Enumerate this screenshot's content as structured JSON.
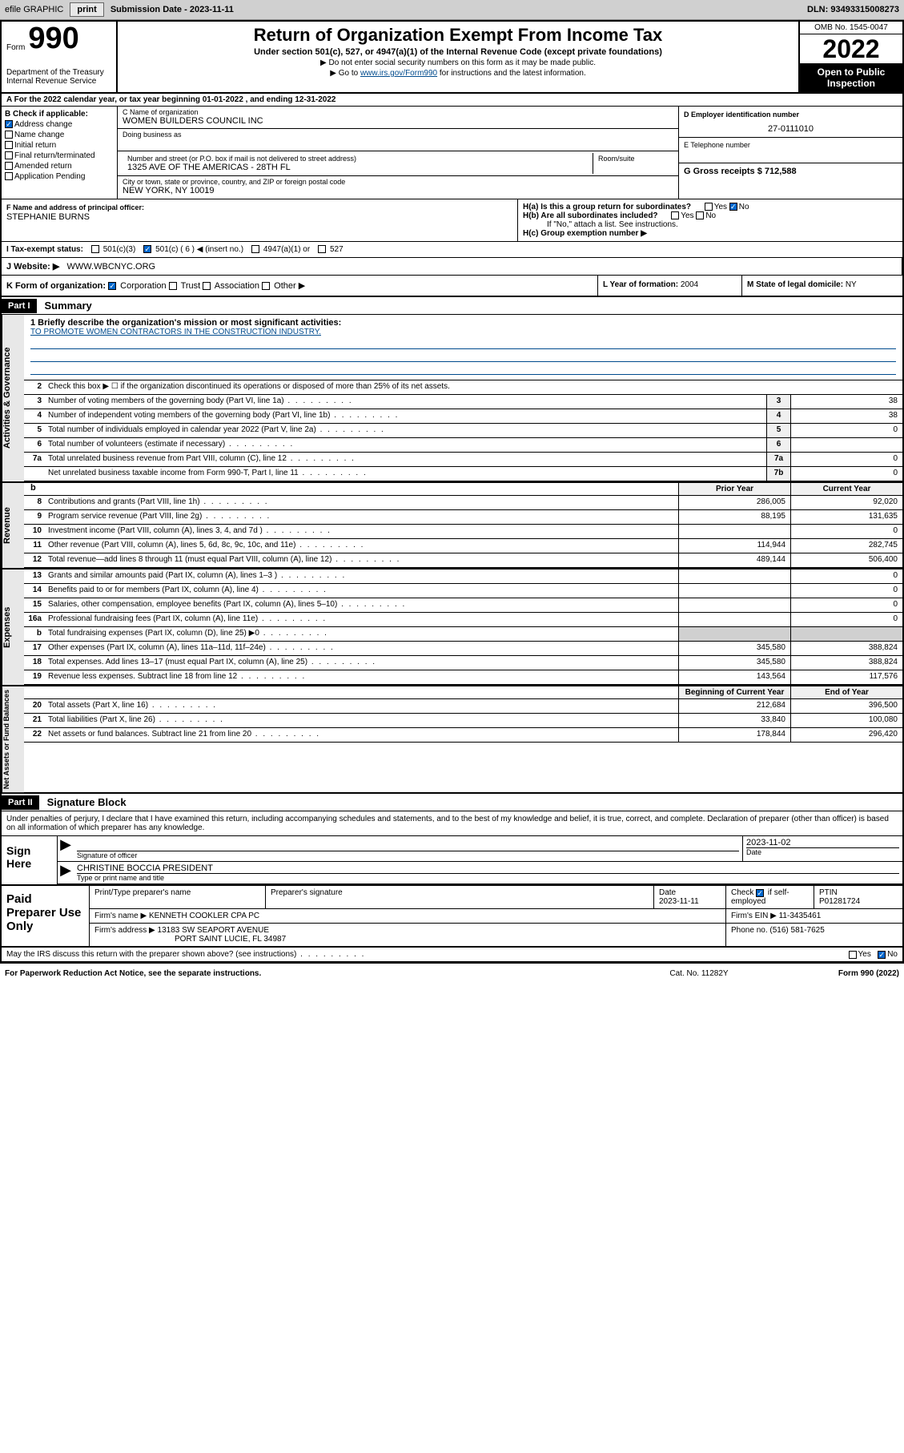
{
  "toolbar": {
    "efile": "efile GRAPHIC",
    "print": "print",
    "submission_label": "Submission Date - ",
    "submission_date": "2023-11-11",
    "dln": "DLN: 93493315008273"
  },
  "header": {
    "form_word": "Form",
    "form_number": "990",
    "dept": "Department of the Treasury",
    "irs": "Internal Revenue Service",
    "title": "Return of Organization Exempt From Income Tax",
    "subtitle": "Under section 501(c), 527, or 4947(a)(1) of the Internal Revenue Code (except private foundations)",
    "note1": "▶ Do not enter social security numbers on this form as it may be made public.",
    "note2_prefix": "▶ Go to ",
    "note2_link": "www.irs.gov/Form990",
    "note2_suffix": " for instructions and the latest information.",
    "omb": "OMB No. 1545-0047",
    "year": "2022",
    "inspection": "Open to Public Inspection"
  },
  "tax_year": "A For the 2022 calendar year, or tax year beginning 01-01-2022   , and ending 12-31-2022",
  "section_b": {
    "label": "B Check if applicable:",
    "items": [
      "Address change",
      "Name change",
      "Initial return",
      "Final return/terminated",
      "Amended return",
      "Application Pending"
    ],
    "checked": [
      true,
      false,
      false,
      false,
      false,
      false
    ]
  },
  "section_c": {
    "name_label": "C Name of organization",
    "name": "WOMEN BUILDERS COUNCIL INC",
    "dba_label": "Doing business as",
    "dba": "",
    "street_label": "Number and street (or P.O. box if mail is not delivered to street address)",
    "street": "1325 AVE OF THE AMERICAS - 28TH FL",
    "room_label": "Room/suite",
    "city_label": "City or town, state or province, country, and ZIP or foreign postal code",
    "city": "NEW YORK, NY  10019"
  },
  "section_d": {
    "label": "D Employer identification number",
    "value": "27-0111010"
  },
  "section_e": {
    "label": "E Telephone number",
    "value": ""
  },
  "section_g": {
    "label": "G Gross receipts $ ",
    "value": "712,588"
  },
  "section_f": {
    "label": "F  Name and address of principal officer:",
    "value": "STEPHANIE BURNS"
  },
  "section_h": {
    "ha": "H(a)  Is this a group return for subordinates?",
    "hb": "H(b)  Are all subordinates included?",
    "hb_note": "If \"No,\" attach a list. See instructions.",
    "hc": "H(c)  Group exemption number ▶",
    "yes": "Yes",
    "no": "No"
  },
  "section_i": {
    "label": "I   Tax-exempt status:",
    "opts": [
      "501(c)(3)",
      "501(c) ( 6 ) ◀ (insert no.)",
      "4947(a)(1) or",
      "527"
    ],
    "checked_idx": 1
  },
  "section_j": {
    "label": "J   Website: ▶",
    "value": "WWW.WBCNYC.ORG"
  },
  "section_k": {
    "label": "K Form of organization:",
    "opts": [
      "Corporation",
      "Trust",
      "Association",
      "Other ▶"
    ],
    "checked_idx": 0
  },
  "section_l": {
    "label": "L Year of formation: ",
    "value": "2004"
  },
  "section_m": {
    "label": "M State of legal domicile: ",
    "value": "NY"
  },
  "parts": {
    "p1": "Part I",
    "p1_title": "Summary",
    "p2": "Part II",
    "p2_title": "Signature Block"
  },
  "mission": {
    "prompt": "1   Briefly describe the organization's mission or most significant activities:",
    "text": "TO PROMOTE WOMEN CONTRACTORS IN THE CONSTRUCTION INDUSTRY."
  },
  "governance": {
    "side": "Activities & Governance",
    "line2": "Check this box ▶ ☐  if the organization discontinued its operations or disposed of more than 25% of its net assets.",
    "lines": [
      {
        "n": "3",
        "d": "Number of voting members of the governing body (Part VI, line 1a)",
        "box": "3",
        "v": "38"
      },
      {
        "n": "4",
        "d": "Number of independent voting members of the governing body (Part VI, line 1b)",
        "box": "4",
        "v": "38"
      },
      {
        "n": "5",
        "d": "Total number of individuals employed in calendar year 2022 (Part V, line 2a)",
        "box": "5",
        "v": "0"
      },
      {
        "n": "6",
        "d": "Total number of volunteers (estimate if necessary)",
        "box": "6",
        "v": ""
      },
      {
        "n": "7a",
        "d": "Total unrelated business revenue from Part VIII, column (C), line 12",
        "box": "7a",
        "v": "0"
      },
      {
        "n": "",
        "d": "Net unrelated business taxable income from Form 990-T, Part I, line 11",
        "box": "7b",
        "v": "0"
      }
    ]
  },
  "col_headers": {
    "b": "b",
    "prior": "Prior Year",
    "current": "Current Year",
    "begin": "Beginning of Current Year",
    "end": "End of Year"
  },
  "revenue": {
    "side": "Revenue",
    "lines": [
      {
        "n": "8",
        "d": "Contributions and grants (Part VIII, line 1h)",
        "p": "286,005",
        "c": "92,020"
      },
      {
        "n": "9",
        "d": "Program service revenue (Part VIII, line 2g)",
        "p": "88,195",
        "c": "131,635"
      },
      {
        "n": "10",
        "d": "Investment income (Part VIII, column (A), lines 3, 4, and 7d )",
        "p": "",
        "c": "0"
      },
      {
        "n": "11",
        "d": "Other revenue (Part VIII, column (A), lines 5, 6d, 8c, 9c, 10c, and 11e)",
        "p": "114,944",
        "c": "282,745"
      },
      {
        "n": "12",
        "d": "Total revenue—add lines 8 through 11 (must equal Part VIII, column (A), line 12)",
        "p": "489,144",
        "c": "506,400"
      }
    ]
  },
  "expenses": {
    "side": "Expenses",
    "lines": [
      {
        "n": "13",
        "d": "Grants and similar amounts paid (Part IX, column (A), lines 1–3 )",
        "p": "",
        "c": "0"
      },
      {
        "n": "14",
        "d": "Benefits paid to or for members (Part IX, column (A), line 4)",
        "p": "",
        "c": "0"
      },
      {
        "n": "15",
        "d": "Salaries, other compensation, employee benefits (Part IX, column (A), lines 5–10)",
        "p": "",
        "c": "0"
      },
      {
        "n": "16a",
        "d": "Professional fundraising fees (Part IX, column (A), line 11e)",
        "p": "",
        "c": "0"
      },
      {
        "n": "b",
        "d": "Total fundraising expenses (Part IX, column (D), line 25) ▶0",
        "p": "shade",
        "c": "shade"
      },
      {
        "n": "17",
        "d": "Other expenses (Part IX, column (A), lines 11a–11d, 11f–24e)",
        "p": "345,580",
        "c": "388,824"
      },
      {
        "n": "18",
        "d": "Total expenses. Add lines 13–17 (must equal Part IX, column (A), line 25)",
        "p": "345,580",
        "c": "388,824"
      },
      {
        "n": "19",
        "d": "Revenue less expenses. Subtract line 18 from line 12",
        "p": "143,564",
        "c": "117,576"
      }
    ]
  },
  "netassets": {
    "side": "Net Assets or Fund Balances",
    "lines": [
      {
        "n": "20",
        "d": "Total assets (Part X, line 16)",
        "p": "212,684",
        "c": "396,500"
      },
      {
        "n": "21",
        "d": "Total liabilities (Part X, line 26)",
        "p": "33,840",
        "c": "100,080"
      },
      {
        "n": "22",
        "d": "Net assets or fund balances. Subtract line 21 from line 20",
        "p": "178,844",
        "c": "296,420"
      }
    ]
  },
  "penalty": "Under penalties of perjury, I declare that I have examined this return, including accompanying schedules and statements, and to the best of my knowledge and belief, it is true, correct, and complete. Declaration of preparer (other than officer) is based on all information of which preparer has any knowledge.",
  "sign": {
    "here": "Sign Here",
    "sig_label": "Signature of officer",
    "date": "2023-11-02",
    "date_label": "Date",
    "name": "CHRISTINE BOCCIA PRESIDENT",
    "name_label": "Type or print name and title"
  },
  "preparer": {
    "title": "Paid Preparer Use Only",
    "h_name": "Print/Type preparer's name",
    "h_sig": "Preparer's signature",
    "h_date": "Date",
    "date": "2023-11-11",
    "check_label": "Check",
    "self_emp": "if self-employed",
    "ptin_label": "PTIN",
    "ptin": "P01281724",
    "firm_name_label": "Firm's name    ▶",
    "firm_name": "KENNETH COOKLER CPA PC",
    "firm_ein_label": "Firm's EIN ▶",
    "firm_ein": "11-3435461",
    "firm_addr_label": "Firm's address ▶",
    "firm_addr1": "13183 SW SEAPORT AVENUE",
    "firm_addr2": "PORT SAINT LUCIE, FL  34987",
    "phone_label": "Phone no.",
    "phone": "(516) 581-7625"
  },
  "discuss": {
    "text": "May the IRS discuss this return with the preparer shown above? (see instructions)",
    "yes": "Yes",
    "no": "No"
  },
  "footer": {
    "paperwork": "For Paperwork Reduction Act Notice, see the separate instructions.",
    "cat": "Cat. No. 11282Y",
    "form": "Form 990 (2022)"
  },
  "colors": {
    "link": "#004b8d",
    "shade": "#d0d0d0",
    "toolbar_bg": "#d0d0d0",
    "check_blue": "#0066cc"
  }
}
